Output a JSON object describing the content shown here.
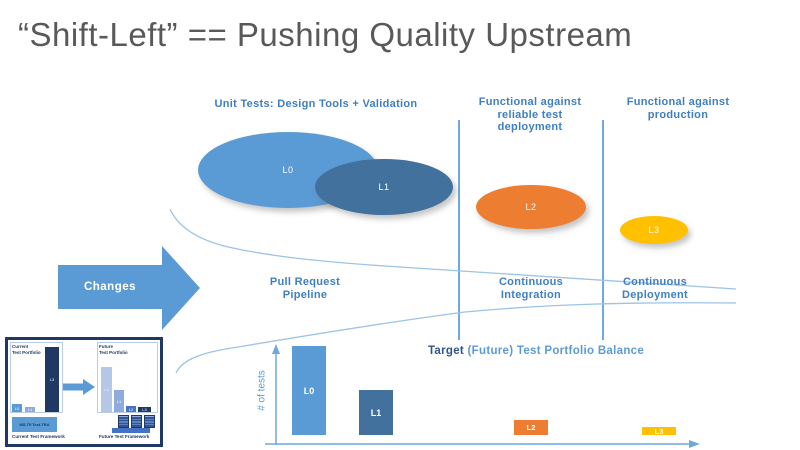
{
  "slide_title": "“Shift-Left” == Pushing Quality Upstream",
  "funnel": {
    "column_headers": [
      "Unit Tests: Design Tools + Validation",
      "Functional against\nreliable test\ndeployment",
      "Functional against\nproduction"
    ],
    "stage_labels": [
      "Pull Request\nPipeline",
      "Continuous\nIntegration",
      "Continuous\nDeployment"
    ],
    "changes_label": "Changes",
    "bubbles": [
      {
        "label": "L0",
        "color": "#5B9BD5"
      },
      {
        "label": "L1",
        "color": "#41719C"
      },
      {
        "label": "L2",
        "color": "#ED7D31"
      },
      {
        "label": "L3",
        "color": "#FFC000"
      }
    ],
    "curve_color": "#9DC3E6",
    "divider_color": "#6FA8DC"
  },
  "chart_data": {
    "type": "bar",
    "title": "Target (Future) Test Portfolio Balance",
    "title_bold": "Target",
    "title_rest": " (Future) Test Portfolio Balance",
    "xlabel": "",
    "ylabel": "# of tests",
    "categories": [
      "L0",
      "L1",
      "L2",
      "L3"
    ],
    "values": [
      100,
      50,
      17,
      9
    ],
    "values_note": "relative heights; y-axis has no numeric ticks",
    "colors": [
      "#5B9BD5",
      "#41719C",
      "#ED7D31",
      "#FFC000"
    ],
    "grid": false,
    "legend": false,
    "axis_color": "#6FA8DC"
  },
  "inset": {
    "current": {
      "title": "Current\nTest Portfolio",
      "bars": [
        {
          "label": "L0",
          "color": "#5B9BD5"
        },
        {
          "label": "L1",
          "color": "#8FAADC"
        },
        {
          "label": "L3",
          "color": "#203864"
        }
      ],
      "framework_box": "MS.TF.Test.TRA",
      "caption": "Current Test Framework"
    },
    "future": {
      "title": "Future\nTest Portfolio",
      "bars": [
        {
          "label": "L0",
          "color": "#B4C7E7"
        },
        {
          "label": "L1",
          "color": "#8FAADC"
        },
        {
          "label": "L2",
          "color": "#4472C4"
        },
        {
          "label": "L3",
          "color": "#203864"
        }
      ],
      "caption": "Future Test Framework"
    }
  }
}
